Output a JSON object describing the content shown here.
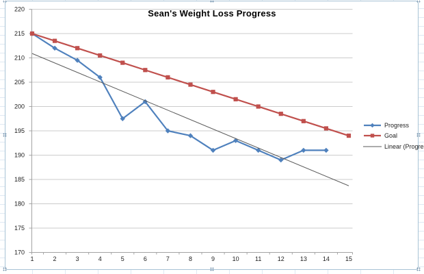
{
  "chart_data": {
    "type": "line",
    "title": "Sean's Weight Loss Progress",
    "x_categories": [
      "1",
      "2",
      "3",
      "4",
      "5",
      "6",
      "7",
      "8",
      "9",
      "10",
      "11",
      "12",
      "13",
      "14",
      "15"
    ],
    "y_axis": {
      "min": 170,
      "max": 220,
      "step": 5,
      "tick_labels": [
        "220",
        "215",
        "210",
        "205",
        "200",
        "195",
        "190",
        "185",
        "180",
        "175",
        "170"
      ]
    },
    "grid": "horizontal-major",
    "legend": {
      "position": "right"
    },
    "series": [
      {
        "name": "Progress",
        "color": "#4F81BD",
        "marker": "diamond",
        "values": [
          215,
          212,
          209.5,
          206,
          197.5,
          201,
          195,
          194,
          191,
          193,
          191,
          189,
          191,
          191,
          null
        ]
      },
      {
        "name": "Goal",
        "color": "#C0504D",
        "marker": "square",
        "values": [
          215,
          213.5,
          212,
          210.5,
          209,
          207.5,
          206,
          204.5,
          203,
          201.5,
          200,
          198.5,
          197,
          195.5,
          194
        ]
      }
    ],
    "trendline": {
      "name": "Linear (Progress)",
      "color": "#5A5A5A",
      "from": {
        "x": 1,
        "y": 210.9
      },
      "to": {
        "x": 15,
        "y": 183.7
      }
    }
  },
  "colors": {
    "plot_bg": "#FFFFFF",
    "gridline": "#CBCBCB",
    "axis_line": "#A3A3A3",
    "tick_label": "#212121",
    "frame_border": "#A8C3D5",
    "sheet_gridline": "#DAE6F2"
  }
}
